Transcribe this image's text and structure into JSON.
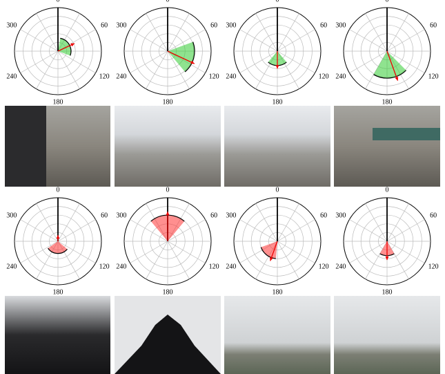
{
  "chart_data": [
    {
      "type": "polar",
      "color": "#33cc33",
      "theta_ticks": [
        0,
        60,
        120,
        180,
        240,
        300
      ],
      "theta_grid": [
        0,
        30,
        60,
        90,
        120,
        150,
        180,
        210,
        240,
        270,
        300,
        330
      ],
      "rlim": [
        0,
        1
      ],
      "rgrid": [
        0.2,
        0.4,
        0.6,
        0.8,
        1
      ],
      "wedge": {
        "start": 10,
        "end": 110,
        "r": 0.3
      },
      "arrow": {
        "theta": 65,
        "r": 0.42
      }
    },
    {
      "type": "polar",
      "color": "#33cc33",
      "theta_ticks": [
        0,
        60,
        120,
        180,
        240,
        300
      ],
      "theta_grid": [
        0,
        30,
        60,
        90,
        120,
        150,
        180,
        210,
        240,
        270,
        300,
        330
      ],
      "rlim": [
        0,
        1
      ],
      "rgrid": [
        0.2,
        0.4,
        0.6,
        0.8,
        1
      ],
      "wedge": {
        "start": 70,
        "end": 140,
        "r": 0.62
      },
      "arrow": {
        "theta": 115,
        "r": 0.68
      }
    },
    {
      "type": "polar",
      "color": "#33cc33",
      "theta_ticks": [
        0,
        60,
        120,
        180,
        240,
        300
      ],
      "theta_grid": [
        0,
        30,
        60,
        90,
        120,
        150,
        180,
        210,
        240,
        270,
        300,
        330
      ],
      "rlim": [
        0,
        1
      ],
      "rgrid": [
        0.2,
        0.4,
        0.6,
        0.8,
        1
      ],
      "wedge": {
        "start": 140,
        "end": 220,
        "r": 0.33
      },
      "arrow": {
        "theta": 180,
        "r": 0.4
      }
    },
    {
      "type": "polar",
      "color": "#33cc33",
      "theta_ticks": [
        0,
        60,
        120,
        180,
        240,
        300
      ],
      "theta_grid": [
        0,
        30,
        60,
        90,
        120,
        150,
        180,
        210,
        240,
        270,
        300,
        330
      ],
      "rlim": [
        0,
        1
      ],
      "rgrid": [
        0.2,
        0.4,
        0.6,
        0.8,
        1
      ],
      "wedge": {
        "start": 135,
        "end": 210,
        "r": 0.62
      },
      "arrow": {
        "theta": 160,
        "r": 0.72
      }
    },
    {
      "type": "polar",
      "color": "#ff3333",
      "theta_ticks": [
        0,
        60,
        120,
        180,
        240,
        300
      ],
      "theta_grid": [
        0,
        30,
        60,
        90,
        120,
        150,
        180,
        210,
        240,
        270,
        300,
        330
      ],
      "rlim": [
        0,
        1
      ],
      "rgrid": [
        0.2,
        0.4,
        0.6,
        0.8,
        1
      ],
      "wedge": {
        "start": 130,
        "end": 235,
        "r": 0.28
      },
      "arrow": {
        "theta": 0,
        "r": 0.14
      }
    },
    {
      "type": "polar",
      "color": "#ff3333",
      "theta_ticks": [
        0,
        60,
        120,
        180,
        240,
        300
      ],
      "theta_grid": [
        0,
        30,
        60,
        90,
        120,
        150,
        180,
        210,
        240,
        270,
        300,
        330
      ],
      "rlim": [
        0,
        1
      ],
      "rgrid": [
        0.2,
        0.4,
        0.6,
        0.8,
        1
      ],
      "wedge": {
        "start": 320,
        "end": 40,
        "r": 0.6
      },
      "arrow": {
        "theta": 0,
        "r": 0.68
      }
    },
    {
      "type": "polar",
      "color": "#ff3333",
      "theta_ticks": [
        0,
        60,
        120,
        180,
        240,
        300
      ],
      "theta_grid": [
        0,
        30,
        60,
        90,
        120,
        150,
        180,
        210,
        240,
        270,
        300,
        330
      ],
      "rlim": [
        0,
        1
      ],
      "rgrid": [
        0.2,
        0.4,
        0.6,
        0.8,
        1
      ],
      "wedge": {
        "start": 185,
        "end": 250,
        "r": 0.4
      },
      "arrow": {
        "theta": 200,
        "r": 0.48
      }
    },
    {
      "type": "polar",
      "color": "#ff3333",
      "theta_ticks": [
        0,
        60,
        120,
        180,
        240,
        300
      ],
      "theta_grid": [
        0,
        30,
        60,
        90,
        120,
        150,
        180,
        210,
        240,
        270,
        300,
        330
      ],
      "rlim": [
        0,
        1
      ],
      "rgrid": [
        0.2,
        0.4,
        0.6,
        0.8,
        1
      ],
      "wedge": {
        "start": 150,
        "end": 210,
        "r": 0.33
      },
      "arrow": {
        "theta": 180,
        "r": 0.43
      }
    }
  ]
}
